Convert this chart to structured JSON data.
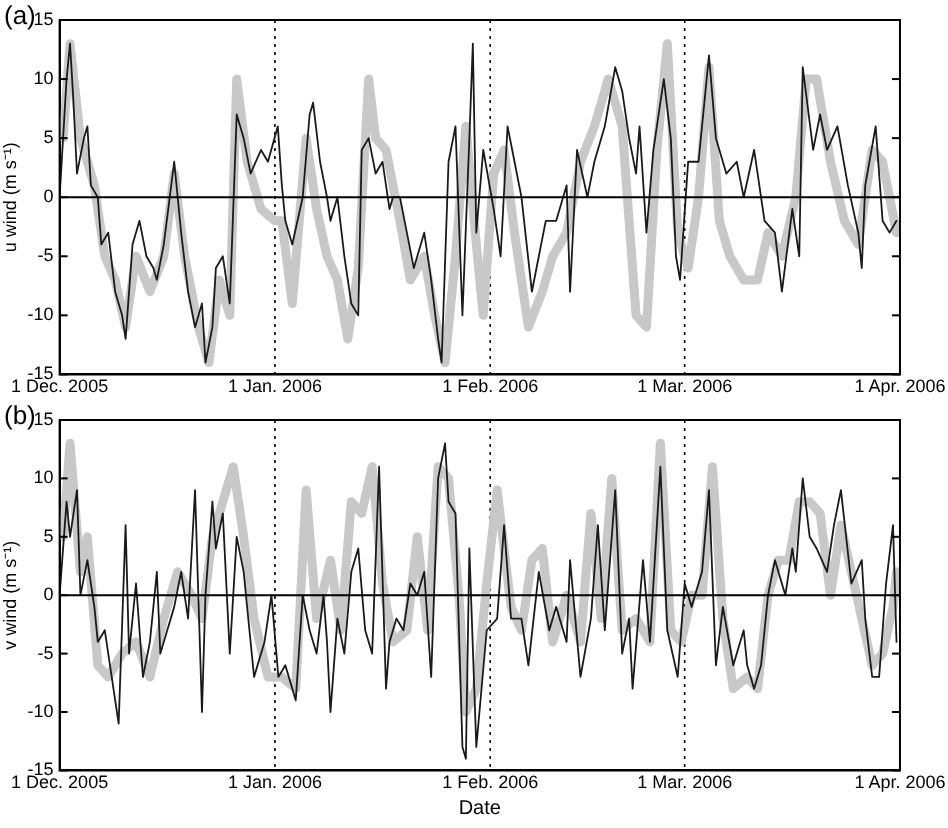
{
  "chart_data": [
    {
      "type": "line",
      "title": "(a)",
      "ylabel": "u wind (m s⁻¹)",
      "xlim": [
        "2005-12-01",
        "2006-04-01"
      ],
      "xticks": [
        {
          "value": "2005-12-01",
          "label": "1 Dec. 2005"
        },
        {
          "value": "2006-01-01",
          "label": "1 Jan. 2006"
        },
        {
          "value": "2006-02-01",
          "label": "1 Feb. 2006"
        },
        {
          "value": "2006-03-01",
          "label": "1 Mar. 2006"
        },
        {
          "value": "2006-04-01",
          "label": "1 Apr. 2006"
        }
      ],
      "ylim": [
        -15,
        15
      ],
      "yticks": [
        -15,
        -10,
        -5,
        0,
        5,
        10,
        15
      ],
      "grid": false,
      "legend": false,
      "marker": "none",
      "line_style": "solid",
      "ref_lines": [
        {
          "axis": "y",
          "value": 0,
          "color": "#000000",
          "line_style": "solid"
        },
        {
          "axis": "x",
          "value": "2006-01-01",
          "color": "#000000",
          "line_style": "dotted"
        },
        {
          "axis": "x",
          "value": "2006-02-01",
          "color": "#000000",
          "line_style": "dotted"
        },
        {
          "axis": "x",
          "value": "2006-03-01",
          "color": "#000000",
          "line_style": "dotted"
        }
      ],
      "series": [
        {
          "color": "#c8c8c8",
          "x": [
            "2005-12-01T12:00",
            "2005-12-02T12:00",
            "2005-12-04",
            "2005-12-06",
            "2005-12-07T12:00",
            "2005-12-09",
            "2005-12-10T12:00",
            "2005-12-12",
            "2005-12-14",
            "2005-12-16",
            "2005-12-17T12:00",
            "2005-12-19",
            "2005-12-21",
            "2005-12-22T12:00",
            "2005-12-24",
            "2005-12-25T12:00",
            "2005-12-26T12:00",
            "2005-12-28",
            "2005-12-30",
            "2006-01-01",
            "2006-01-02",
            "2006-01-03T12:00",
            "2006-01-05T12:00",
            "2006-01-07",
            "2006-01-08T12:00",
            "2006-01-10",
            "2006-01-11T12:00",
            "2006-01-13",
            "2006-01-14T12:00",
            "2006-01-15T12:00",
            "2006-01-17",
            "2006-01-19",
            "2006-01-20T12:00",
            "2006-01-22T12:00",
            "2006-01-24",
            "2006-01-25T12:00",
            "2006-01-27",
            "2006-01-28T12:00",
            "2006-01-30",
            "2006-01-31",
            "2006-02-01T12:00",
            "2006-02-03",
            "2006-02-04T12:00",
            "2006-02-06T12:00",
            "2006-02-08T12:00",
            "2006-02-10",
            "2006-02-12",
            "2006-02-14",
            "2006-02-16",
            "2006-02-18",
            "2006-02-20",
            "2006-02-22",
            "2006-02-23T12:00",
            "2006-02-25",
            "2006-02-26T12:00",
            "2006-02-28",
            "2006-03-01T12:00",
            "2006-03-03",
            "2006-03-04T12:00",
            "2006-03-06",
            "2006-03-07T12:00",
            "2006-03-09T12:00",
            "2006-03-11T12:00",
            "2006-03-13",
            "2006-03-15",
            "2006-03-17",
            "2006-03-18T12:00",
            "2006-03-20",
            "2006-03-22",
            "2006-03-24",
            "2006-03-26",
            "2006-03-28",
            "2006-03-29T12:00",
            "2006-03-31T12:00"
          ],
          "values": [
            5,
            13,
            5,
            1,
            -5,
            -7,
            -11,
            -5,
            -8,
            -5,
            2,
            -5,
            -11,
            -14,
            -7,
            -10,
            10,
            3,
            -1,
            -2,
            -2,
            -9,
            5,
            -1,
            -5,
            -7,
            -12,
            -6,
            10,
            5,
            4,
            -2,
            -7,
            -5,
            -10,
            -14,
            -5,
            6,
            -4,
            -10,
            2,
            4,
            -3,
            -11,
            -8,
            -5,
            -3,
            3,
            6,
            10,
            6,
            -10,
            -11,
            4,
            13,
            -3,
            -6,
            0,
            11,
            -2,
            -5,
            -7,
            -7,
            -3,
            -5,
            0,
            10,
            10,
            3,
            -2,
            -4,
            4,
            3,
            -3
          ]
        },
        {
          "color": "#1a1a1a",
          "x": [
            "2005-12-01",
            "2005-12-02",
            "2005-12-02T12:00",
            "2005-12-03",
            "2005-12-03T12:00",
            "2005-12-04T12:00",
            "2005-12-05",
            "2005-12-05T12:00",
            "2005-12-06T12:00",
            "2005-12-07",
            "2005-12-08",
            "2005-12-09",
            "2005-12-10",
            "2005-12-10T12:00",
            "2005-12-11T12:00",
            "2005-12-12T12:00",
            "2005-12-13T12:00",
            "2005-12-14T12:00",
            "2005-12-15",
            "2005-12-16",
            "2005-12-17T12:00",
            "2005-12-18T12:00",
            "2005-12-19T12:00",
            "2005-12-20T12:00",
            "2005-12-21T12:00",
            "2005-12-22",
            "2005-12-23",
            "2005-12-23T12:00",
            "2005-12-24T12:00",
            "2005-12-25T12:00",
            "2005-12-26T12:00",
            "2005-12-27T12:00",
            "2005-12-28T12:00",
            "2005-12-30",
            "2005-12-31",
            "2006-01-01T10:00",
            "2006-01-02",
            "2006-01-02T12:00",
            "2006-01-03T12:00",
            "2006-01-05",
            "2006-01-06",
            "2006-01-06T12:00",
            "2006-01-07T12:00",
            "2006-01-08T12:00",
            "2006-01-09",
            "2006-01-10",
            "2006-01-11",
            "2006-01-12",
            "2006-01-13",
            "2006-01-13T12:00",
            "2006-01-14T12:00",
            "2006-01-15T12:00",
            "2006-01-16T12:00",
            "2006-01-17T12:00",
            "2006-01-18",
            "2006-01-19",
            "2006-01-20",
            "2006-01-21",
            "2006-01-22T12:00",
            "2006-01-23T12:00",
            "2006-01-24T12:00",
            "2006-01-25",
            "2006-01-26",
            "2006-01-27",
            "2006-01-28",
            "2006-01-29",
            "2006-01-29T12:00",
            "2006-01-30",
            "2006-01-31",
            "2006-02-01T12:00",
            "2006-02-02T12:00",
            "2006-02-03T12:00",
            "2006-02-04T12:00",
            "2006-02-05T12:00",
            "2006-02-07",
            "2006-02-08",
            "2006-02-09",
            "2006-02-10T12:00",
            "2006-02-12",
            "2006-02-12T12:00",
            "2006-02-13T12:00",
            "2006-02-15",
            "2006-02-16",
            "2006-02-17T12:00",
            "2006-02-19",
            "2006-02-20",
            "2006-02-21",
            "2006-02-22",
            "2006-02-22T12:00",
            "2006-02-23T12:00",
            "2006-02-24T12:00",
            "2006-02-26",
            "2006-02-27",
            "2006-02-27T18:00",
            "2006-02-28T08:00",
            "2006-03-01T12:00",
            "2006-03-03",
            "2006-03-04T12:00",
            "2006-03-05T12:00",
            "2006-03-07",
            "2006-03-08T12:00",
            "2006-03-09T12:00",
            "2006-03-11",
            "2006-03-12T12:00",
            "2006-03-14",
            "2006-03-15",
            "2006-03-16T12:00",
            "2006-03-17T12:00",
            "2006-03-18",
            "2006-03-19T12:00",
            "2006-03-20T12:00",
            "2006-03-21T12:00",
            "2006-03-23",
            "2006-03-24T12:00",
            "2006-03-26",
            "2006-03-26T12:00",
            "2006-03-27",
            "2006-03-28T12:00",
            "2006-03-29T12:00",
            "2006-03-30T12:00",
            "2006-03-31T12:00"
          ],
          "values": [
            0,
            10,
            13,
            8,
            2,
            5,
            6,
            1,
            0,
            -4,
            -3,
            -8,
            -10,
            -12,
            -4,
            -2,
            -5,
            -6,
            -7,
            -4,
            3,
            -3,
            -8,
            -11,
            -9,
            -14,
            -11,
            -6,
            -5,
            -9,
            7,
            5,
            2,
            4,
            3,
            6,
            1,
            -2,
            -4,
            0,
            7,
            8,
            3,
            0,
            -2,
            0,
            -5,
            -9,
            -10,
            4,
            5,
            2,
            3,
            -1,
            0,
            0,
            -3,
            -6,
            -3,
            -7,
            -12,
            -14,
            3,
            6,
            -10,
            5,
            13,
            -3,
            4,
            -1,
            -5,
            6,
            3,
            0,
            -8,
            -5,
            -2,
            -2,
            1,
            -8,
            4,
            0,
            3,
            6,
            11,
            9,
            5,
            2,
            6,
            -3,
            4,
            10,
            5,
            -5,
            -7,
            3,
            3,
            12,
            5,
            2,
            3,
            0,
            4,
            -2,
            -3,
            -8,
            -1,
            -5,
            11,
            4,
            7,
            4,
            6,
            1,
            -3,
            -6,
            1,
            6,
            -2,
            -3,
            -2
          ]
        }
      ]
    },
    {
      "type": "line",
      "title": "(b)",
      "ylabel": "v wind (m s⁻¹)",
      "xlabel": "Date",
      "xlim": [
        "2005-12-01",
        "2006-04-01"
      ],
      "xticks": [
        {
          "value": "2005-12-01",
          "label": "1 Dec. 2005"
        },
        {
          "value": "2006-01-01",
          "label": "1 Jan. 2006"
        },
        {
          "value": "2006-02-01",
          "label": "1 Feb. 2006"
        },
        {
          "value": "2006-03-01",
          "label": "1 Mar. 2006"
        },
        {
          "value": "2006-04-01",
          "label": "1 Apr. 2006"
        }
      ],
      "ylim": [
        -15,
        15
      ],
      "yticks": [
        -15,
        -10,
        -5,
        0,
        5,
        10,
        15
      ],
      "grid": false,
      "legend": false,
      "marker": "none",
      "line_style": "solid",
      "ref_lines": [
        {
          "axis": "y",
          "value": 0,
          "color": "#000000",
          "line_style": "solid"
        },
        {
          "axis": "x",
          "value": "2006-01-01",
          "color": "#000000",
          "line_style": "dotted"
        },
        {
          "axis": "x",
          "value": "2006-02-01",
          "color": "#000000",
          "line_style": "dotted"
        },
        {
          "axis": "x",
          "value": "2006-03-01",
          "color": "#000000",
          "line_style": "dotted"
        }
      ],
      "series": [
        {
          "color": "#c8c8c8",
          "x": [
            "2005-12-01T12:00",
            "2005-12-02T12:00",
            "2005-12-04",
            "2005-12-05",
            "2005-12-06T12:00",
            "2005-12-08",
            "2005-12-10",
            "2005-12-12",
            "2005-12-14",
            "2005-12-16",
            "2005-12-18",
            "2005-12-20",
            "2005-12-21T12:00",
            "2005-12-23",
            "2005-12-25",
            "2005-12-26",
            "2005-12-27T12:00",
            "2005-12-29",
            "2005-12-31",
            "2006-01-02",
            "2006-01-04",
            "2006-01-05T12:00",
            "2006-01-07",
            "2006-01-09",
            "2006-01-10T12:00",
            "2006-01-12",
            "2006-01-13T12:00",
            "2006-01-15",
            "2006-01-16T12:00",
            "2006-01-18",
            "2006-01-20",
            "2006-01-21T12:00",
            "2006-01-23",
            "2006-01-24T12:00",
            "2006-01-26",
            "2006-01-27T12:00",
            "2006-01-28T12:00",
            "2006-01-30",
            "2006-01-31T12:00",
            "2006-02-02",
            "2006-02-04",
            "2006-02-05T12:00",
            "2006-02-07",
            "2006-02-08T12:00",
            "2006-02-10",
            "2006-02-12",
            "2006-02-14",
            "2006-02-15T12:00",
            "2006-02-17",
            "2006-02-18T12:00",
            "2006-02-20",
            "2006-02-22",
            "2006-02-24",
            "2006-02-25T12:00",
            "2006-02-27",
            "2006-02-28T12:00",
            "2006-03-02",
            "2006-03-03T12:00",
            "2006-03-05",
            "2006-03-06T12:00",
            "2006-03-08",
            "2006-03-10",
            "2006-03-11T12:00",
            "2006-03-13",
            "2006-03-14T12:00",
            "2006-03-16",
            "2006-03-17T12:00",
            "2006-03-19",
            "2006-03-20T12:00",
            "2006-03-22",
            "2006-03-23T12:00",
            "2006-03-25",
            "2006-03-26T12:00",
            "2006-03-28",
            "2006-03-29T12:00",
            "2006-03-31",
            "2006-03-31T12:00"
          ],
          "values": [
            5,
            13,
            2,
            5,
            -6,
            -7,
            -5,
            -4,
            -7,
            -2,
            2,
            0,
            -2,
            5,
            9,
            11,
            5,
            -2,
            -7,
            -7,
            -8,
            9,
            -2,
            3,
            -3,
            8,
            7,
            11,
            1,
            -4,
            -3,
            5,
            -3,
            11,
            10,
            0,
            -10,
            -8,
            1,
            9,
            -1,
            -3,
            3,
            4,
            -4,
            0,
            -4,
            7,
            -2,
            10,
            -3,
            -2,
            -4,
            13,
            -3,
            -4,
            0,
            0,
            11,
            -2,
            -8,
            -7,
            -8,
            0,
            3,
            3,
            8,
            8,
            7,
            0,
            6,
            2,
            -2,
            -6,
            -5,
            -1,
            2
          ]
        },
        {
          "color": "#1a1a1a",
          "x": [
            "2005-12-01",
            "2005-12-02",
            "2005-12-02T12:00",
            "2005-12-03T12:00",
            "2005-12-04",
            "2005-12-05",
            "2005-12-06",
            "2005-12-06T12:00",
            "2005-12-07T12:00",
            "2005-12-08T12:00",
            "2005-12-09T12:00",
            "2005-12-10T12:00",
            "2005-12-11",
            "2005-12-12",
            "2005-12-13",
            "2005-12-14",
            "2005-12-15",
            "2005-12-15T12:00",
            "2005-12-16T12:00",
            "2005-12-17T12:00",
            "2005-12-18T12:00",
            "2005-12-19T12:00",
            "2005-12-20T12:00",
            "2005-12-21T12:00",
            "2005-12-22",
            "2005-12-23",
            "2005-12-23T12:00",
            "2005-12-24T12:00",
            "2005-12-25T12:00",
            "2005-12-26T12:00",
            "2005-12-27T12:00",
            "2005-12-29",
            "2005-12-30T12:00",
            "2005-12-31T12:00",
            "2006-01-01T12:00",
            "2006-01-02T12:00",
            "2006-01-04",
            "2006-01-05",
            "2006-01-06",
            "2006-01-07",
            "2006-01-08",
            "2006-01-08T12:00",
            "2006-01-09",
            "2006-01-10",
            "2006-01-11",
            "2006-01-12",
            "2006-01-13",
            "2006-01-14",
            "2006-01-15",
            "2006-01-16",
            "2006-01-17",
            "2006-01-17T12:00",
            "2006-01-18T12:00",
            "2006-01-19T12:00",
            "2006-01-20T12:00",
            "2006-01-21T12:00",
            "2006-01-22T12:00",
            "2006-01-23T12:00",
            "2006-01-24T12:00",
            "2006-01-25T12:00",
            "2006-01-26",
            "2006-01-27",
            "2006-01-28",
            "2006-01-28T12:00",
            "2006-01-29",
            "2006-01-30",
            "2006-01-31T12:00",
            "2006-02-02",
            "2006-02-03",
            "2006-02-04",
            "2006-02-05T12:00",
            "2006-02-06T12:00",
            "2006-02-08",
            "2006-02-09T12:00",
            "2006-02-10T12:00",
            "2006-02-12",
            "2006-02-12T12:00",
            "2006-02-14",
            "2006-02-15T12:00",
            "2006-02-16T12:00",
            "2006-02-17T12:00",
            "2006-02-19",
            "2006-02-20",
            "2006-02-21",
            "2006-02-21T12:00",
            "2006-02-23",
            "2006-02-24",
            "2006-02-25T12:00",
            "2006-02-26T12:00",
            "2006-02-28",
            "2006-03-01",
            "2006-03-02",
            "2006-03-03T12:00",
            "2006-03-04T12:00",
            "2006-03-05T12:00",
            "2006-03-06T12:00",
            "2006-03-08",
            "2006-03-09T12:00",
            "2006-03-10",
            "2006-03-11",
            "2006-03-12",
            "2006-03-13",
            "2006-03-14",
            "2006-03-15T12:00",
            "2006-03-16T12:00",
            "2006-03-17",
            "2006-03-18",
            "2006-03-19",
            "2006-03-20",
            "2006-03-21T12:00",
            "2006-03-22T12:00",
            "2006-03-23T12:00",
            "2006-03-25",
            "2006-03-26T12:00",
            "2006-03-27",
            "2006-03-28",
            "2006-03-29",
            "2006-03-30",
            "2006-03-31",
            "2006-03-31T12:00"
          ],
          "values": [
            0,
            8,
            5,
            9,
            0,
            3,
            -1,
            -4,
            -3,
            -7,
            -11,
            6,
            -5,
            1,
            -7,
            -4,
            2,
            -5,
            -3,
            -1,
            2,
            -2,
            9,
            -10,
            0,
            8,
            4,
            7,
            -5,
            5,
            2,
            -7,
            -4,
            0,
            -7,
            -6,
            -9,
            0,
            -3,
            -5,
            0,
            -4,
            -10,
            -2,
            -5,
            2,
            4,
            -3,
            -5,
            11,
            -8,
            -4,
            -2,
            -3,
            1,
            0,
            2,
            -7,
            10,
            13,
            8,
            7,
            -13,
            -14,
            4,
            -13,
            -3,
            -2,
            6,
            -2,
            -2,
            -6,
            2,
            -3,
            -1,
            -4,
            3,
            -7,
            -2,
            6,
            -3,
            9,
            -5,
            -2,
            -8,
            3,
            -4,
            11,
            -3,
            -7,
            1,
            -1,
            2,
            9,
            -6,
            -1,
            -6,
            -3,
            -6,
            -8,
            -6,
            0,
            3,
            0,
            4,
            2,
            10,
            5,
            4,
            2,
            6,
            9,
            1,
            3,
            -2,
            -7,
            -7,
            1,
            6,
            -4
          ]
        }
      ]
    }
  ]
}
